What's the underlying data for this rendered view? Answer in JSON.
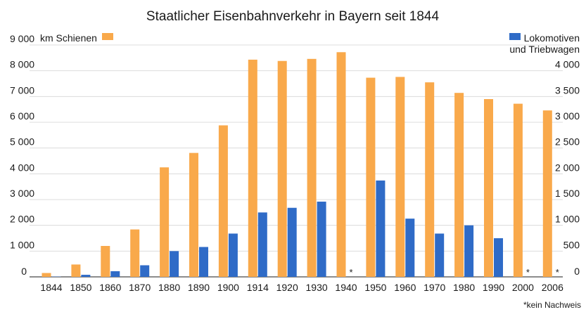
{
  "chart_data": {
    "type": "bar",
    "title": "Staatlicher Eisenbahnverkehr in Bayern seit 1844",
    "categories": [
      "1844",
      "1850",
      "1860",
      "1870",
      "1880",
      "1890",
      "1900",
      "1914",
      "1920",
      "1930",
      "1940",
      "1950",
      "1960",
      "1970",
      "1980",
      "1990",
      "2000",
      "2006"
    ],
    "left_axis": {
      "label": "km Schienen",
      "range": [
        0,
        9000
      ],
      "ticks": [
        0,
        1000,
        2000,
        3000,
        4000,
        5000,
        6000,
        7000,
        8000,
        9000
      ],
      "tick_labels": [
        "0",
        "1 000",
        "2 000",
        "3 000",
        "4 000",
        "5 000",
        "6 000",
        "7 000",
        "8 000",
        "9 000"
      ]
    },
    "right_axis": {
      "label_line1": "Lokomotiven",
      "label_line2": "und Triebwagen",
      "range": [
        0,
        4500
      ],
      "ticks": [
        0,
        500,
        1000,
        1500,
        2000,
        2500,
        3000,
        3500,
        4000
      ],
      "tick_labels": [
        "0",
        "500",
        "1 000",
        "1 500",
        "2 000",
        "2 500",
        "3 000",
        "3 500",
        "4 000"
      ]
    },
    "series": [
      {
        "name": "km Schienen",
        "axis": "left",
        "color": "#f9a94b",
        "values": [
          150,
          480,
          1200,
          1840,
          4250,
          4810,
          5880,
          8430,
          8380,
          8460,
          8720,
          7730,
          7760,
          7550,
          7140,
          6900,
          6720,
          6460
        ]
      },
      {
        "name": "Lokomotiven und Triebwagen",
        "axis": "right",
        "color": "#2f6bc7",
        "values": [
          5,
          40,
          110,
          225,
          500,
          580,
          840,
          1250,
          1340,
          1460,
          null,
          1870,
          1130,
          840,
          1000,
          750,
          null,
          null
        ]
      }
    ],
    "missing_marker": "*",
    "footnote": "*kein Nachweis",
    "grid": true,
    "legend_position": "top"
  }
}
